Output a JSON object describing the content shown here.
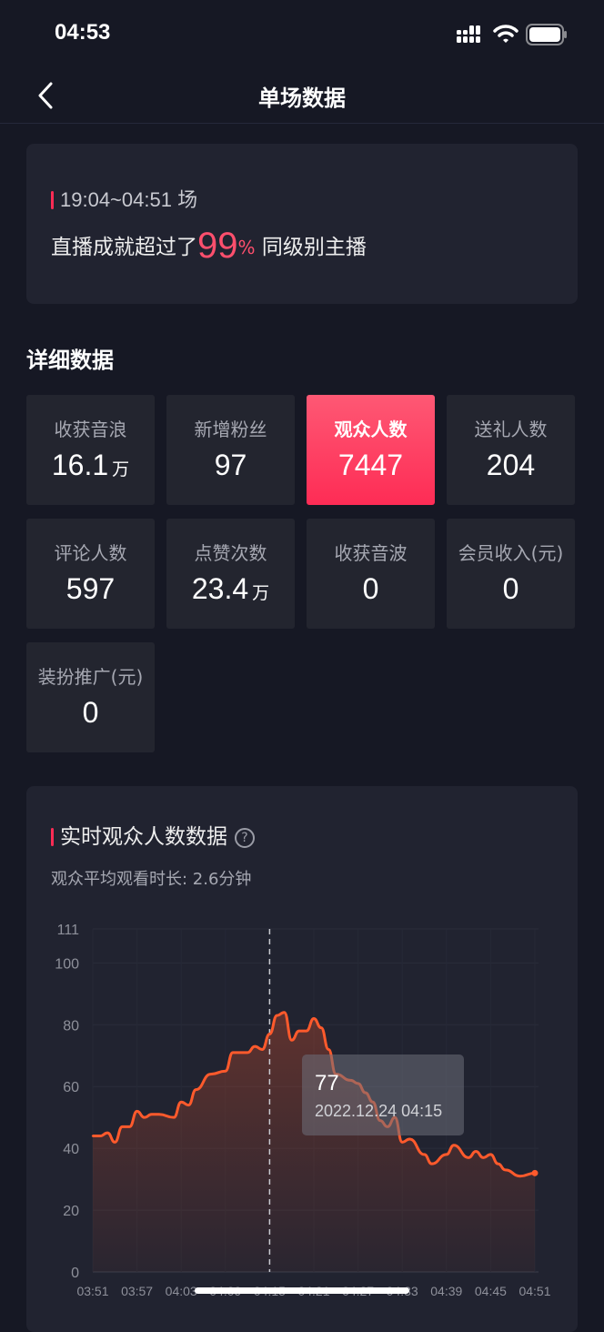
{
  "status_bar": {
    "time": "04:53",
    "icons": [
      "signal-icon",
      "wifi-icon",
      "battery-icon"
    ]
  },
  "nav": {
    "title": "单场数据",
    "back_icon": "chevron-left-icon"
  },
  "summary": {
    "session": "19:04~04:51 场",
    "prefix": "直播成就超过了",
    "percent": "99",
    "percent_unit": "%",
    "suffix": "同级别主播"
  },
  "detail": {
    "title": "详细数据",
    "tiles": [
      {
        "label": "收获音浪",
        "value": "16.1",
        "unit": "万"
      },
      {
        "label": "新增粉丝",
        "value": "97",
        "unit": ""
      },
      {
        "label": "观众人数",
        "value": "7447",
        "unit": "",
        "active": true
      },
      {
        "label": "送礼人数",
        "value": "204",
        "unit": ""
      },
      {
        "label": "评论人数",
        "value": "597",
        "unit": ""
      },
      {
        "label": "点赞次数",
        "value": "23.4",
        "unit": "万"
      },
      {
        "label": "收获音波",
        "value": "0",
        "unit": ""
      },
      {
        "label": "会员收入(元)",
        "value": "0",
        "unit": ""
      },
      {
        "label": "装扮推广(元)",
        "value": "0",
        "unit": ""
      }
    ]
  },
  "colors": {
    "accent": "#fe2c55",
    "line": "#ff5a2c",
    "background": "#161824",
    "card": "#212330"
  },
  "chart_section": {
    "title": "实时观众人数数据",
    "help_icon": "question-circle-icon",
    "avg_label": "观众平均观看时长: 2.6分钟"
  },
  "chart_data": {
    "type": "area",
    "title": "",
    "xlabel": "",
    "ylabel": "",
    "ylim": [
      0,
      111
    ],
    "yticks": [
      0,
      20,
      40,
      60,
      80,
      100,
      111
    ],
    "xticks": [
      "03:51",
      "03:57",
      "04:03",
      "04:09",
      "04:15",
      "04:21",
      "04:27",
      "04:33",
      "04:39",
      "04:45",
      "04:51"
    ],
    "grid": true,
    "x": [
      "03:51",
      "03:52",
      "03:53",
      "03:54",
      "03:55",
      "03:56",
      "03:57",
      "03:58",
      "03:59",
      "04:00",
      "04:02",
      "04:03",
      "04:04",
      "04:05",
      "04:07",
      "04:09",
      "04:10",
      "04:12",
      "04:13",
      "04:14",
      "04:15",
      "04:16",
      "04:17",
      "04:18",
      "04:19",
      "04:20",
      "04:21",
      "04:22",
      "04:23",
      "04:24",
      "04:26",
      "04:27",
      "04:28",
      "04:29",
      "04:30",
      "04:31",
      "04:32",
      "04:33",
      "04:34",
      "04:36",
      "04:37",
      "04:39",
      "04:40",
      "04:42",
      "04:43",
      "04:44",
      "04:45",
      "04:46",
      "04:47",
      "04:49",
      "04:51"
    ],
    "values": [
      44,
      44,
      45,
      42,
      47,
      47,
      52,
      50,
      51,
      51,
      50,
      55,
      54,
      59,
      64,
      65,
      71,
      71,
      73,
      72,
      77,
      83,
      84,
      75,
      78,
      78,
      82,
      79,
      72,
      64,
      62,
      61,
      58,
      55,
      49,
      47,
      50,
      42,
      43,
      38,
      35,
      38,
      41,
      37,
      39,
      37,
      38,
      35,
      33,
      31,
      32
    ],
    "tooltip": {
      "value": "77",
      "time": "2022.12.24 04:15"
    },
    "crosshair_x": "04:15"
  }
}
